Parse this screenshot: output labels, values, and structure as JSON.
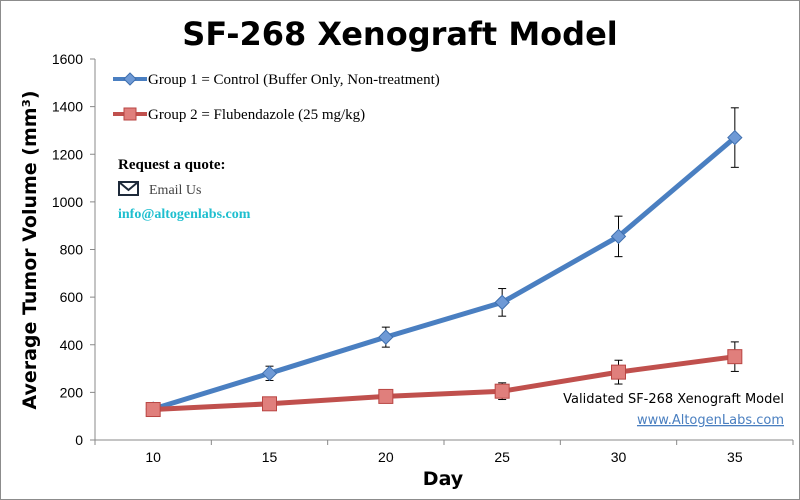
{
  "chart_data": {
    "type": "line",
    "title": "SF-268 Xenograft Model",
    "xlabel": "Day",
    "ylabel": "Average Tumor Volume (mm³)",
    "x": [
      10,
      15,
      20,
      25,
      30,
      35
    ],
    "xticks": [
      "10",
      "15",
      "20",
      "25",
      "30",
      "35"
    ],
    "ylim": [
      0,
      1600
    ],
    "yticks": [
      "0",
      "200",
      "400",
      "600",
      "800",
      "1000",
      "1200",
      "1400",
      "1600"
    ],
    "grid": false,
    "legend_position": "top-left",
    "series": [
      {
        "name": "Group 1 = Control (Buffer Only, Non-treatment)",
        "color": "#4a7fc1",
        "marker": "diamond",
        "values": [
          130,
          280,
          432,
          578,
          855,
          1270
        ],
        "errors": [
          0,
          30,
          42,
          58,
          85,
          125
        ]
      },
      {
        "name": "Group 2 = Flubendazole (25 mg/kg)",
        "color": "#c0504d",
        "marker": "square",
        "values": [
          128,
          152,
          183,
          205,
          285,
          350
        ],
        "errors": [
          0,
          12,
          20,
          35,
          50,
          62
        ]
      }
    ]
  },
  "overlay": {
    "request_quote": "Request a quote:",
    "email_us": "Email Us",
    "email_address": "info@altogenlabs.com",
    "email_icon": "envelope-icon",
    "validated_text": "Validated SF-268 Xenograft Model",
    "website": "www.AltogenLabs.com"
  }
}
